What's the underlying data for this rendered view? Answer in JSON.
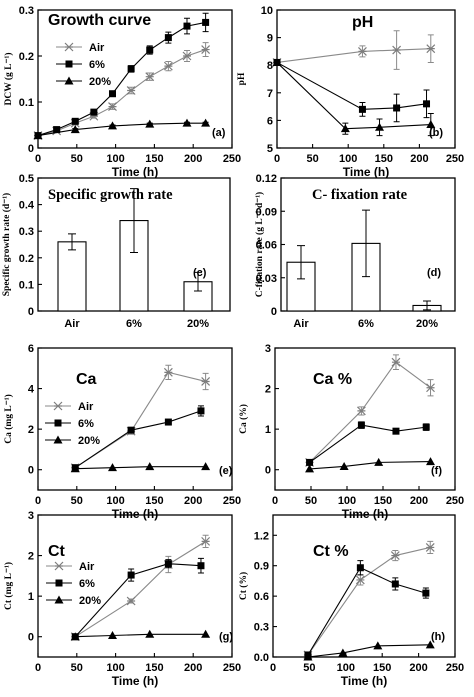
{
  "chart_data": [
    {
      "type": "line",
      "title": "Growth curve",
      "panel_label": "(a)",
      "xlabel": "Time (h)",
      "ylabel": "DCW (g L⁻¹)",
      "xlim": [
        0,
        250
      ],
      "ylim": [
        0,
        0.3
      ],
      "xticks": [
        0,
        50,
        100,
        150,
        200,
        250
      ],
      "yticks": [
        0,
        0.1,
        0.2,
        0.3
      ],
      "ytick_labels": [
        "0",
        "0.1",
        "0.2",
        "0.3"
      ],
      "legend": "top-left",
      "series": [
        {
          "name": "Air",
          "marker": "asterisk",
          "x": [
            0,
            24,
            48,
            72,
            96,
            120,
            144,
            168,
            192,
            216
          ],
          "y": [
            0.027,
            0.037,
            0.054,
            0.069,
            0.09,
            0.125,
            0.155,
            0.178,
            0.2,
            0.214
          ],
          "err": [
            0,
            0.003,
            0.004,
            0.004,
            0.006,
            0.007,
            0.008,
            0.01,
            0.012,
            0.015
          ]
        },
        {
          "name": "6%",
          "marker": "square",
          "x": [
            0,
            24,
            48,
            72,
            96,
            120,
            144,
            168,
            192,
            216
          ],
          "y": [
            0.027,
            0.04,
            0.058,
            0.078,
            0.118,
            0.172,
            0.213,
            0.24,
            0.265,
            0.273
          ],
          "err": [
            0,
            0.003,
            0.004,
            0.005,
            0.006,
            0.007,
            0.009,
            0.012,
            0.017,
            0.02
          ]
        },
        {
          "name": "20%",
          "marker": "triangle",
          "x": [
            0,
            48,
            96,
            144,
            192,
            216
          ],
          "y": [
            0.027,
            0.04,
            0.048,
            0.052,
            0.054,
            0.054
          ],
          "err": [
            0,
            0.002,
            0.002,
            0.002,
            0.002,
            0.002
          ]
        }
      ]
    },
    {
      "type": "line",
      "title": "pH",
      "panel_label": "(b)",
      "xlabel": "Time (h)",
      "ylabel": "pH",
      "xlim": [
        0,
        250
      ],
      "ylim": [
        5,
        10
      ],
      "xticks": [
        0,
        50,
        100,
        150,
        200,
        250
      ],
      "yticks": [
        5,
        6,
        7,
        8,
        9,
        10
      ],
      "ytick_labels": [
        "5",
        "6",
        "7",
        "8",
        "9",
        "10"
      ],
      "series": [
        {
          "name": "Air",
          "marker": "asterisk",
          "x": [
            0,
            120,
            168,
            216
          ],
          "y": [
            8.1,
            8.5,
            8.55,
            8.6
          ],
          "err": [
            0,
            0.2,
            0.7,
            0.5
          ]
        },
        {
          "name": "6%",
          "marker": "square",
          "x": [
            0,
            120,
            168,
            210
          ],
          "y": [
            8.1,
            6.4,
            6.45,
            6.6
          ],
          "err": [
            0,
            0.25,
            0.5,
            0.5
          ]
        },
        {
          "name": "20%",
          "marker": "triangle",
          "x": [
            0,
            96,
            144,
            216
          ],
          "y": [
            8.1,
            5.7,
            5.75,
            5.85
          ],
          "err": [
            0,
            0.2,
            0.3,
            0.4
          ]
        }
      ]
    },
    {
      "type": "bar",
      "title": "Specific growth rate",
      "panel_label": "(c)",
      "ylabel": "Specific growth rate (d⁻¹)",
      "categories": [
        "Air",
        "6%",
        "20%"
      ],
      "values": [
        0.26,
        0.34,
        0.11
      ],
      "err": [
        0.03,
        0.12,
        0.035
      ],
      "ylim": [
        0,
        0.5
      ],
      "yticks": [
        0,
        0.1,
        0.2,
        0.3,
        0.4,
        0.5
      ],
      "ytick_labels": [
        "0",
        "0.1",
        "0.2",
        "0.3",
        "0.4",
        "0.5"
      ]
    },
    {
      "type": "bar",
      "title": "C- fixation rate",
      "panel_label": "(d)",
      "ylabel": "C-fixation rate (g L⁻¹ d⁻¹)",
      "categories": [
        "Air",
        "6%",
        "20%"
      ],
      "values": [
        0.044,
        0.061,
        0.005
      ],
      "err": [
        0.015,
        0.03,
        0.004
      ],
      "ylim": [
        0,
        0.12
      ],
      "yticks": [
        0,
        0.03,
        0.06,
        0.09,
        0.12
      ],
      "ytick_labels": [
        "0",
        "0.03",
        "0.06",
        "0.09",
        "0.12"
      ]
    },
    {
      "type": "line",
      "title": "Ca",
      "panel_label": "(e)",
      "xlabel": "Time (h)",
      "ylabel": "Ca (mg L⁻¹)",
      "xlim": [
        0,
        250
      ],
      "ylim": [
        -1,
        6
      ],
      "xticks": [
        0,
        50,
        100,
        150,
        200,
        250
      ],
      "yticks": [
        0,
        2,
        4,
        6
      ],
      "ytick_labels": [
        "0",
        "2",
        "4",
        "6"
      ],
      "legend": "middle-left",
      "series": [
        {
          "name": "Air",
          "marker": "asterisk",
          "x": [
            48,
            120,
            168,
            216
          ],
          "y": [
            0.1,
            1.9,
            4.8,
            4.35
          ],
          "err": [
            0.05,
            0.15,
            0.35,
            0.4
          ]
        },
        {
          "name": "6%",
          "marker": "square",
          "x": [
            48,
            120,
            168,
            210
          ],
          "y": [
            0.1,
            1.95,
            2.35,
            2.9
          ],
          "err": [
            0.05,
            0.1,
            0.1,
            0.25
          ]
        },
        {
          "name": "20%",
          "marker": "triangle",
          "x": [
            48,
            96,
            144,
            216
          ],
          "y": [
            0.05,
            0.1,
            0.15,
            0.15
          ],
          "err": [
            0,
            0,
            0,
            0
          ]
        }
      ]
    },
    {
      "type": "line",
      "title": "Ca %",
      "panel_label": "(f)",
      "xlabel": "Time (h)",
      "ylabel": "Ca (%)",
      "xlim": [
        0,
        250
      ],
      "ylim": [
        -0.5,
        3
      ],
      "xticks": [
        0,
        50,
        100,
        150,
        200,
        250
      ],
      "yticks": [
        0,
        1,
        2,
        3
      ],
      "ytick_labels": [
        "0",
        "1",
        "2",
        "3"
      ],
      "series": [
        {
          "name": "Air",
          "marker": "asterisk",
          "x": [
            48,
            120,
            168,
            216
          ],
          "y": [
            0.18,
            1.45,
            2.65,
            2.02
          ],
          "err": [
            0.03,
            0.1,
            0.18,
            0.2
          ]
        },
        {
          "name": "6%",
          "marker": "square",
          "x": [
            48,
            120,
            168,
            210
          ],
          "y": [
            0.18,
            1.1,
            0.95,
            1.05
          ],
          "err": [
            0.03,
            0.08,
            0.05,
            0.08
          ]
        },
        {
          "name": "20%",
          "marker": "triangle",
          "x": [
            48,
            96,
            144,
            216
          ],
          "y": [
            0.02,
            0.08,
            0.18,
            0.2
          ],
          "err": [
            0,
            0,
            0,
            0
          ]
        }
      ]
    },
    {
      "type": "line",
      "title": "Ct",
      "panel_label": "(g)",
      "xlabel": "Time (h)",
      "ylabel": "Ct (mg L⁻¹)",
      "xlim": [
        0,
        250
      ],
      "ylim": [
        -0.5,
        3
      ],
      "xticks": [
        0,
        50,
        100,
        150,
        200,
        250
      ],
      "yticks": [
        0,
        1,
        2,
        3
      ],
      "ytick_labels": [
        "0",
        "1",
        "2",
        "3"
      ],
      "legend": "middle-left",
      "series": [
        {
          "name": "Air",
          "marker": "asterisk",
          "x": [
            48,
            120,
            168,
            216
          ],
          "y": [
            0,
            0.88,
            1.78,
            2.35
          ],
          "err": [
            0,
            0.05,
            0.2,
            0.15
          ]
        },
        {
          "name": "6%",
          "marker": "square",
          "x": [
            48,
            120,
            168,
            210
          ],
          "y": [
            0,
            1.52,
            1.8,
            1.75
          ],
          "err": [
            0,
            0.15,
            0.1,
            0.18
          ]
        },
        {
          "name": "20%",
          "marker": "triangle",
          "x": [
            48,
            96,
            144,
            216
          ],
          "y": [
            0,
            0.03,
            0.06,
            0.06
          ],
          "err": [
            0,
            0,
            0,
            0
          ]
        }
      ]
    },
    {
      "type": "line",
      "title": "Ct %",
      "panel_label": "(h)",
      "xlabel": "Time (h)",
      "ylabel": "Ct (%)",
      "xlim": [
        0,
        250
      ],
      "ylim": [
        0,
        1.4
      ],
      "xticks": [
        0,
        50,
        100,
        150,
        200,
        250
      ],
      "yticks": [
        0,
        0.3,
        0.6,
        0.9,
        1.2
      ],
      "ytick_labels": [
        "0.0",
        "0.3",
        "0.6",
        "0.9",
        "1.2"
      ],
      "series": [
        {
          "name": "Air",
          "marker": "asterisk",
          "x": [
            48,
            120,
            168,
            216
          ],
          "y": [
            0.02,
            0.76,
            1.0,
            1.08
          ],
          "err": [
            0,
            0.05,
            0.05,
            0.06
          ]
        },
        {
          "name": "6%",
          "marker": "square",
          "x": [
            48,
            120,
            168,
            210
          ],
          "y": [
            0.02,
            0.88,
            0.72,
            0.63
          ],
          "err": [
            0,
            0.07,
            0.06,
            0.05
          ]
        },
        {
          "name": "20%",
          "marker": "triangle",
          "x": [
            48,
            96,
            144,
            216
          ],
          "y": [
            0,
            0.04,
            0.11,
            0.12
          ],
          "err": [
            0,
            0,
            0,
            0
          ]
        }
      ]
    }
  ]
}
